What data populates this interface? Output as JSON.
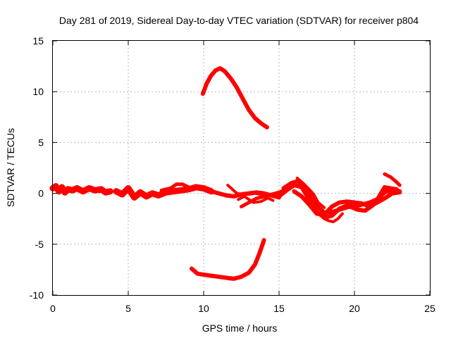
{
  "chart_data": {
    "type": "scatter",
    "title": "Day 281 of 2019, Sidereal Day-to-day VTEC variation (SDTVAR) for receiver p804",
    "xlabel": "GPS time / hours",
    "ylabel": "SDTVAR / TECUs",
    "xlim": [
      0,
      25
    ],
    "ylim": [
      -10,
      15
    ],
    "xticks": [
      "0",
      "5",
      "10",
      "15",
      "20",
      "25"
    ],
    "yticks": [
      "-10",
      "-5",
      "0",
      "5",
      "10",
      "15"
    ],
    "grid": true,
    "marker_color": "#ff0000",
    "series": [
      {
        "name": "main-band-a",
        "width": 9,
        "points": [
          [
            0.0,
            0.5
          ],
          [
            0.2,
            0.7
          ],
          [
            0.4,
            0.2
          ],
          [
            0.6,
            0.6
          ],
          [
            0.8,
            0.1
          ],
          [
            1.0,
            0.4
          ],
          [
            1.3,
            0.3
          ],
          [
            1.6,
            0.5
          ],
          [
            2.0,
            0.2
          ],
          [
            2.4,
            0.5
          ],
          [
            2.8,
            0.3
          ],
          [
            3.2,
            0.4
          ],
          [
            3.5,
            0.1
          ],
          [
            3.8,
            0.2
          ]
        ]
      },
      {
        "name": "main-band-b",
        "width": 9,
        "points": [
          [
            4.2,
            0.2
          ],
          [
            4.6,
            -0.1
          ],
          [
            5.0,
            0.5
          ],
          [
            5.4,
            -0.4
          ],
          [
            5.8,
            0.1
          ],
          [
            6.2,
            -0.3
          ],
          [
            6.6,
            0.0
          ],
          [
            7.0,
            -0.2
          ],
          [
            7.5,
            0.1
          ],
          [
            8.0,
            0.2
          ],
          [
            8.5,
            0.3
          ],
          [
            9.0,
            0.4
          ],
          [
            9.5,
            0.6
          ],
          [
            10.0,
            0.5
          ],
          [
            10.5,
            0.2
          ]
        ]
      },
      {
        "name": "main-band-c",
        "width": 6,
        "points": [
          [
            10.5,
            0.2
          ],
          [
            11.0,
            0.0
          ],
          [
            11.5,
            -0.2
          ],
          [
            12.0,
            -0.3
          ],
          [
            12.5,
            -0.1
          ],
          [
            13.0,
            0.0
          ],
          [
            13.5,
            0.1
          ],
          [
            14.0,
            0.0
          ],
          [
            14.5,
            -0.2
          ],
          [
            15.0,
            -0.4
          ]
        ]
      },
      {
        "name": "upper-arc",
        "width": 6,
        "points": [
          [
            9.95,
            9.8
          ],
          [
            10.2,
            10.8
          ],
          [
            10.5,
            11.6
          ],
          [
            10.8,
            12.1
          ],
          [
            11.1,
            12.3
          ],
          [
            11.4,
            12.0
          ],
          [
            11.8,
            11.3
          ],
          [
            12.2,
            10.4
          ],
          [
            12.6,
            9.3
          ],
          [
            13.0,
            8.2
          ],
          [
            13.4,
            7.4
          ],
          [
            13.8,
            6.9
          ],
          [
            14.2,
            6.5
          ]
        ]
      },
      {
        "name": "lower-arc",
        "width": 6,
        "points": [
          [
            9.2,
            -7.4
          ],
          [
            9.6,
            -7.9
          ],
          [
            10.0,
            -8.0
          ],
          [
            10.5,
            -8.1
          ],
          [
            11.0,
            -8.2
          ],
          [
            11.5,
            -8.3
          ],
          [
            12.0,
            -8.4
          ],
          [
            12.5,
            -8.2
          ],
          [
            13.0,
            -7.8
          ],
          [
            13.4,
            -7.0
          ],
          [
            13.7,
            -5.9
          ],
          [
            14.0,
            -4.6
          ]
        ]
      },
      {
        "name": "rising-branch-a",
        "width": 5,
        "points": [
          [
            7.2,
            0.3
          ],
          [
            7.8,
            0.5
          ],
          [
            8.2,
            0.9
          ],
          [
            8.6,
            0.9
          ],
          [
            9.0,
            0.6
          ],
          [
            9.5,
            0.5
          ]
        ]
      },
      {
        "name": "rising-branch-b",
        "width": 4,
        "points": [
          [
            11.6,
            0.8
          ],
          [
            11.9,
            0.4
          ],
          [
            12.2,
            0.0
          ],
          [
            12.6,
            -0.1
          ],
          [
            13.0,
            -0.1
          ],
          [
            13.4,
            0.0
          ],
          [
            13.8,
            -0.1
          ],
          [
            14.2,
            -0.4
          ],
          [
            14.6,
            -0.7
          ]
        ]
      },
      {
        "name": "mid-lower-strand",
        "width": 4,
        "points": [
          [
            12.3,
            -0.6
          ],
          [
            12.7,
            -0.3
          ],
          [
            13.0,
            -0.6
          ],
          [
            13.3,
            -0.9
          ],
          [
            13.8,
            -0.8
          ],
          [
            14.2,
            -0.5
          ]
        ]
      },
      {
        "name": "mid-crossing",
        "width": 5,
        "points": [
          [
            12.5,
            -1.3
          ],
          [
            13.0,
            -0.9
          ],
          [
            13.5,
            -0.5
          ],
          [
            14.0,
            -0.3
          ],
          [
            14.5,
            -0.1
          ],
          [
            15.0,
            0.1
          ],
          [
            15.5,
            0.4
          ]
        ]
      },
      {
        "name": "late-strand-1",
        "width": 6,
        "points": [
          [
            15.0,
            -0.3
          ],
          [
            15.5,
            0.3
          ],
          [
            16.0,
            0.8
          ],
          [
            16.5,
            0.6
          ],
          [
            17.0,
            -0.6
          ],
          [
            17.5,
            -1.8
          ],
          [
            18.0,
            -2.4
          ],
          [
            18.5,
            -2.2
          ],
          [
            19.0,
            -1.5
          ],
          [
            19.5,
            -1.2
          ],
          [
            20.0,
            -1.3
          ],
          [
            20.5,
            -1.1
          ],
          [
            21.0,
            -0.9
          ],
          [
            21.5,
            -0.6
          ],
          [
            22.0,
            0.1
          ],
          [
            22.5,
            0.4
          ],
          [
            23.0,
            0.2
          ]
        ]
      },
      {
        "name": "late-strand-2",
        "width": 6,
        "points": [
          [
            15.3,
            0.5
          ],
          [
            15.8,
            1.0
          ],
          [
            16.2,
            1.2
          ],
          [
            16.6,
            0.8
          ],
          [
            17.0,
            0.0
          ],
          [
            17.5,
            -1.2
          ],
          [
            18.0,
            -1.9
          ],
          [
            18.6,
            -1.8
          ],
          [
            19.2,
            -1.5
          ],
          [
            19.7,
            -1.3
          ],
          [
            20.2,
            -1.6
          ],
          [
            20.7,
            -1.7
          ],
          [
            21.2,
            -1.2
          ],
          [
            21.6,
            -0.4
          ],
          [
            22.0,
            0.6
          ],
          [
            22.4,
            0.5
          ],
          [
            22.8,
            0.4
          ]
        ]
      },
      {
        "name": "late-strand-3",
        "width": 6,
        "points": [
          [
            16.0,
            0.2
          ],
          [
            16.5,
            -0.3
          ],
          [
            17.0,
            -1.1
          ],
          [
            17.5,
            -2.0
          ],
          [
            18.0,
            -2.1
          ],
          [
            18.5,
            -1.3
          ],
          [
            19.0,
            -0.9
          ],
          [
            19.5,
            -0.8
          ],
          [
            20.0,
            -0.9
          ],
          [
            20.5,
            -1.0
          ],
          [
            21.0,
            -1.3
          ],
          [
            21.5,
            -0.9
          ],
          [
            22.0,
            -0.5
          ],
          [
            22.5,
            0.0
          ],
          [
            23.0,
            0.1
          ]
        ]
      },
      {
        "name": "late-spike",
        "width": 5,
        "points": [
          [
            22.0,
            1.9
          ],
          [
            22.4,
            1.6
          ],
          [
            22.8,
            1.1
          ],
          [
            23.0,
            0.8
          ]
        ]
      },
      {
        "name": "late-wiggle",
        "width": 4,
        "points": [
          [
            16.2,
            1.5
          ],
          [
            16.6,
            1.0
          ],
          [
            17.0,
            0.4
          ],
          [
            17.3,
            -0.1
          ],
          [
            17.6,
            -0.9
          ],
          [
            18.0,
            -1.4
          ]
        ]
      },
      {
        "name": "dip-18",
        "width": 4,
        "points": [
          [
            18.0,
            -2.5
          ],
          [
            18.3,
            -2.7
          ],
          [
            18.6,
            -2.8
          ],
          [
            18.9,
            -2.5
          ],
          [
            19.2,
            -2.0
          ]
        ]
      }
    ]
  }
}
